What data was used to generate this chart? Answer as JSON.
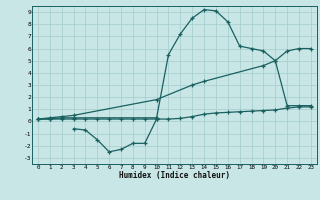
{
  "xlabel": "Humidex (Indice chaleur)",
  "bg_color": "#c8e6e6",
  "grid_color": "#a8d0d0",
  "line_color": "#1a6060",
  "xlim": [
    -0.5,
    23.5
  ],
  "ylim": [
    -3.5,
    9.5
  ],
  "xticks": [
    0,
    1,
    2,
    3,
    4,
    5,
    6,
    7,
    8,
    9,
    10,
    11,
    12,
    13,
    14,
    15,
    16,
    17,
    18,
    19,
    20,
    21,
    22,
    23
  ],
  "yticks": [
    -3,
    -2,
    -1,
    0,
    1,
    2,
    3,
    4,
    5,
    6,
    7,
    8,
    9
  ],
  "line1_x": [
    0,
    1,
    2,
    3,
    10,
    11,
    12,
    13,
    14,
    15,
    16,
    17,
    18,
    19,
    20,
    21,
    22,
    23
  ],
  "line1_y": [
    0.2,
    0.2,
    0.3,
    0.3,
    0.3,
    5.5,
    7.2,
    8.5,
    9.2,
    9.1,
    8.2,
    6.2,
    6.0,
    5.8,
    5.0,
    1.3,
    1.3,
    1.3
  ],
  "line2_x": [
    0,
    1,
    2,
    3,
    4,
    5,
    6,
    7,
    8,
    9,
    10,
    11,
    12,
    13,
    14,
    15,
    16,
    17,
    18,
    19,
    20,
    21,
    22,
    23
  ],
  "line2_y": [
    0.2,
    0.2,
    0.2,
    0.2,
    0.2,
    0.2,
    0.2,
    0.2,
    0.2,
    0.2,
    0.2,
    0.2,
    0.25,
    0.4,
    0.6,
    0.7,
    0.75,
    0.8,
    0.85,
    0.9,
    0.95,
    1.1,
    1.2,
    1.2
  ],
  "line3_x": [
    0,
    1,
    2,
    3,
    10,
    13,
    14,
    19,
    20,
    21,
    22,
    23
  ],
  "line3_y": [
    0.2,
    0.3,
    0.4,
    0.5,
    1.8,
    3.0,
    3.3,
    4.6,
    5.0,
    5.8,
    6.0,
    6.0
  ],
  "line4_x": [
    3,
    4,
    5,
    6,
    7,
    8,
    9,
    10
  ],
  "line4_y": [
    -0.6,
    -0.7,
    -1.5,
    -2.5,
    -2.3,
    -1.8,
    -1.8,
    0.2
  ]
}
